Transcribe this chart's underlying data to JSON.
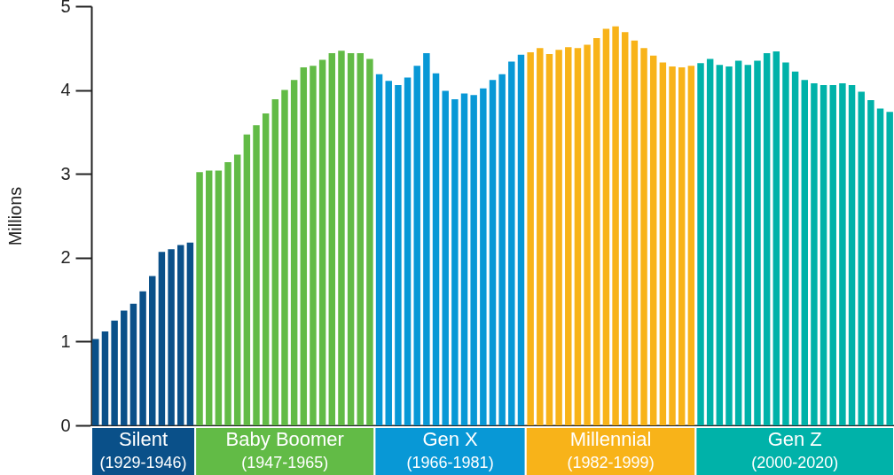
{
  "chart_data": {
    "type": "bar",
    "ylabel": "Millions",
    "ylim": [
      0,
      5
    ],
    "yticks": [
      0,
      1,
      2,
      3,
      4,
      5
    ],
    "grid": false,
    "categories": [
      null,
      null,
      null,
      null,
      null,
      null,
      null,
      null,
      null,
      null,
      null,
      null,
      null,
      null,
      null,
      null,
      null,
      null,
      null,
      null,
      null,
      null,
      null,
      null,
      null,
      null,
      null,
      null,
      null,
      null,
      null,
      null,
      null,
      null,
      null,
      null,
      null,
      null,
      null,
      null,
      null,
      null,
      null,
      null,
      null,
      null,
      null,
      null,
      null,
      null,
      null,
      null,
      null,
      null,
      null,
      null,
      null,
      null,
      null,
      null,
      null,
      null,
      null,
      null,
      null,
      null,
      null,
      null,
      null,
      null,
      null,
      null,
      null,
      null,
      null,
      null,
      null,
      null,
      null,
      null,
      null,
      null,
      null,
      null,
      null
    ],
    "values": [
      1.03,
      1.12,
      1.25,
      1.37,
      1.45,
      1.6,
      1.78,
      2.07,
      2.1,
      2.15,
      2.18,
      3.02,
      3.04,
      3.04,
      3.14,
      3.23,
      3.47,
      3.58,
      3.72,
      3.89,
      4.0,
      4.12,
      4.27,
      4.29,
      4.36,
      4.44,
      4.47,
      4.44,
      4.44,
      4.37,
      4.19,
      4.11,
      4.06,
      4.15,
      4.29,
      4.44,
      4.2,
      3.99,
      3.89,
      3.96,
      3.94,
      4.02,
      4.12,
      4.19,
      4.34,
      4.42,
      4.45,
      4.5,
      4.43,
      4.48,
      4.51,
      4.5,
      4.54,
      4.62,
      4.73,
      4.76,
      4.69,
      4.59,
      4.5,
      4.41,
      4.33,
      4.28,
      4.27,
      4.29,
      4.32,
      4.37,
      4.3,
      4.28,
      4.35,
      4.3,
      4.35,
      4.44,
      4.46,
      4.33,
      4.22,
      4.12,
      4.08,
      4.06,
      4.06,
      4.08,
      4.06,
      3.98,
      3.88,
      3.78,
      3.74
    ],
    "colors": [
      "#0a5089",
      "#0a5089",
      "#0a5089",
      "#0a5089",
      "#0a5089",
      "#0a5089",
      "#0a5089",
      "#0a5089",
      "#0a5089",
      "#0a5089",
      "#0a5089",
      "#62bb46",
      "#62bb46",
      "#62bb46",
      "#62bb46",
      "#62bb46",
      "#62bb46",
      "#62bb46",
      "#62bb46",
      "#62bb46",
      "#62bb46",
      "#62bb46",
      "#62bb46",
      "#62bb46",
      "#62bb46",
      "#62bb46",
      "#62bb46",
      "#62bb46",
      "#62bb46",
      "#62bb46",
      "#0898d6",
      "#0898d6",
      "#0898d6",
      "#0898d6",
      "#0898d6",
      "#0898d6",
      "#0898d6",
      "#0898d6",
      "#0898d6",
      "#0898d6",
      "#0898d6",
      "#0898d6",
      "#0898d6",
      "#0898d6",
      "#0898d6",
      "#0898d6",
      "#f8b319",
      "#f8b319",
      "#f8b319",
      "#f8b319",
      "#f8b319",
      "#f8b319",
      "#f8b319",
      "#f8b319",
      "#f8b319",
      "#f8b319",
      "#f8b319",
      "#f8b319",
      "#f8b319",
      "#f8b319",
      "#f8b319",
      "#f8b319",
      "#f8b319",
      "#f8b319",
      "#00b2a9",
      "#00b2a9",
      "#00b2a9",
      "#00b2a9",
      "#00b2a9",
      "#00b2a9",
      "#00b2a9",
      "#00b2a9",
      "#00b2a9",
      "#00b2a9",
      "#00b2a9",
      "#00b2a9",
      "#00b2a9",
      "#00b2a9",
      "#00b2a9",
      "#00b2a9",
      "#00b2a9",
      "#00b2a9",
      "#00b2a9",
      "#00b2a9",
      "#00b2a9"
    ],
    "annotations": [
      "Silent",
      "(1929-1946)",
      "Baby Boomer",
      "(1947-1965)",
      "Gen X",
      "(1966-1981)",
      "Millennial",
      "(1982-1999)",
      "Gen Z",
      "(2000-2020)"
    ]
  }
}
